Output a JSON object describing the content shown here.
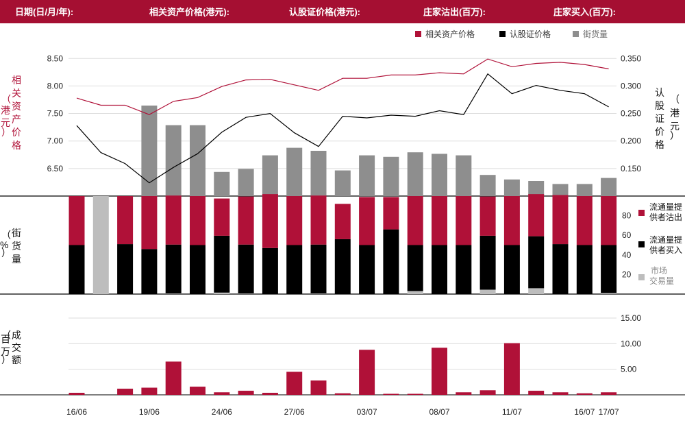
{
  "header": {
    "fields": [
      "日期(日/月/年):",
      "相关资产价格(港元):",
      "认股证价格(港元):",
      "庄家沽出(百万):",
      "庄家买入(百万):"
    ]
  },
  "colors": {
    "header_bg": "#A50F32",
    "asset": "#B01138",
    "warrant": "#000000",
    "outstanding": "#8E8E8E",
    "market": "#BDBDBD",
    "grid": "#DDDDDD"
  },
  "chart_data": {
    "type": "combo",
    "x_ticks": [
      "16/06",
      "19/06",
      "24/06",
      "27/06",
      "03/07",
      "08/07",
      "11/07",
      "16/07",
      "17/07"
    ],
    "x_tick_positions": [
      0,
      3,
      6,
      9,
      12,
      15,
      18,
      21,
      22
    ],
    "legend_top": [
      "相关资产价格",
      "认股证价格",
      "街货量"
    ],
    "price_panel": {
      "left_axis": {
        "label": "相关资产价格（港元）",
        "ticks": [
          8.5,
          8.0,
          7.5,
          7.0,
          6.5
        ],
        "range": [
          6.0,
          8.74
        ]
      },
      "right_axis": {
        "label": "认股证价格（港元）",
        "ticks": [
          0.35,
          0.3,
          0.25,
          0.2,
          0.15
        ],
        "range": [
          0.1,
          0.374
        ]
      },
      "asset_price": [
        7.78,
        7.65,
        7.65,
        7.48,
        7.72,
        7.79,
        7.99,
        8.11,
        8.12,
        8.02,
        7.92,
        8.14,
        8.14,
        8.2,
        8.2,
        8.24,
        8.22,
        8.49,
        8.35,
        8.41,
        8.43,
        8.39,
        8.31
      ],
      "warrant_price": [
        0.228,
        0.179,
        0.159,
        0.124,
        0.152,
        0.177,
        0.216,
        0.243,
        0.25,
        0.215,
        0.19,
        0.245,
        0.242,
        0.247,
        0.245,
        0.255,
        0.248,
        0.322,
        0.286,
        0.301,
        0.292,
        0.286,
        0.262
      ],
      "outstanding": [
        0,
        0,
        0,
        0.6,
        0.47,
        0.47,
        0.16,
        0.18,
        0.27,
        0.32,
        0.3,
        0.17,
        0.27,
        0.26,
        0.29,
        0.28,
        0.27,
        0.14,
        0.11,
        0.1,
        0.08,
        0.08,
        0.12
      ]
    },
    "percent_panel": {
      "axis_label": "街货量（%）",
      "ticks": [
        80,
        60,
        40,
        20
      ],
      "legend": [
        "流通量提供者沽出",
        "流通量提供者买入",
        "市场交易量"
      ],
      "sell": [
        50,
        0,
        49,
        54,
        50,
        50,
        38,
        49,
        55,
        50,
        50,
        36,
        49,
        33,
        50,
        50,
        50,
        40,
        50,
        43,
        50,
        50,
        50
      ],
      "buy": [
        50,
        0,
        51,
        46,
        50,
        50,
        58,
        50,
        47,
        50,
        50,
        56,
        50,
        66,
        47,
        50,
        50,
        55,
        50,
        53,
        51,
        50,
        49
      ],
      "market": [
        0,
        100,
        0,
        0,
        0.5,
        0,
        1.5,
        0.5,
        0,
        0,
        0.5,
        0,
        0,
        0,
        3,
        0,
        0,
        4.5,
        0,
        6,
        0,
        0,
        1
      ]
    },
    "volume_panel": {
      "axis_label": "成交额（百万）",
      "ticks": [
        15.0,
        10.0,
        5.0
      ],
      "range": [
        0,
        15.0
      ],
      "values": [
        0.4,
        0,
        1.2,
        1.4,
        6.5,
        1.6,
        0.5,
        0.8,
        0.4,
        4.5,
        2.8,
        0.3,
        8.8,
        0.2,
        0.2,
        9.2,
        0.5,
        0.9,
        10.1,
        0.8,
        0.5,
        0.3,
        0.5
      ]
    }
  }
}
